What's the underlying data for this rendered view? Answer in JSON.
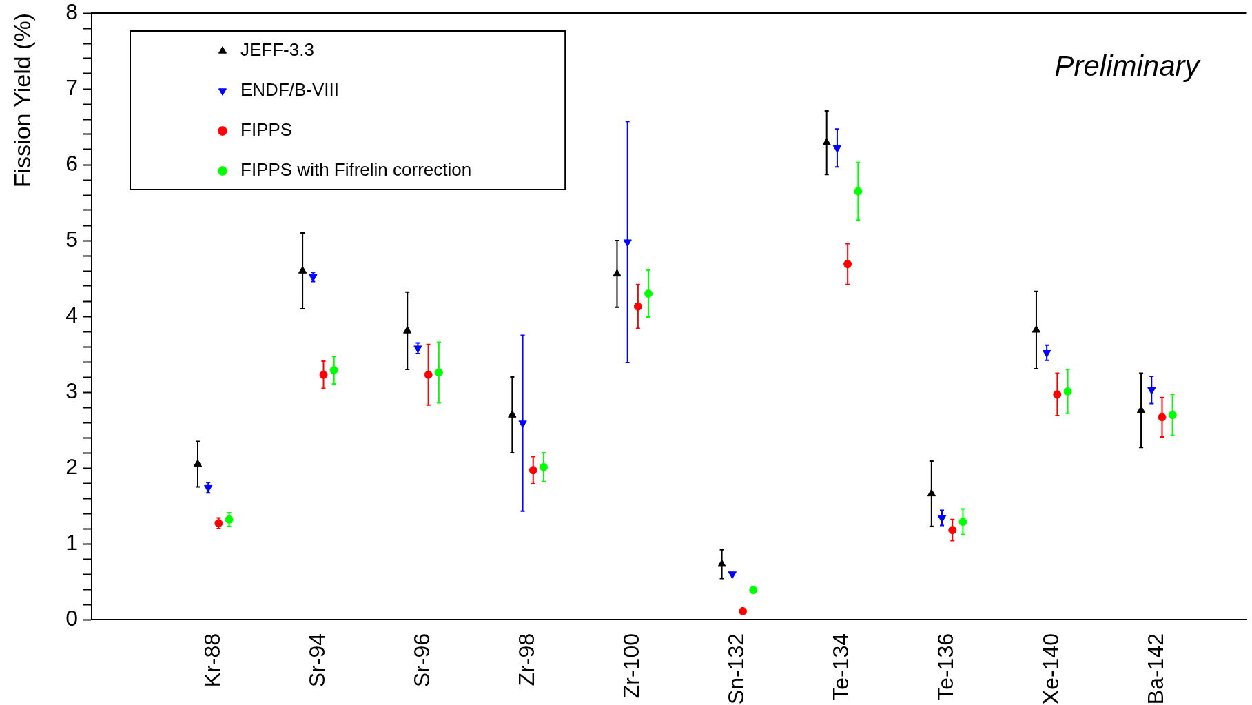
{
  "chart_data": {
    "type": "scatter",
    "ylabel": "Fission Yield (%)",
    "categories": [
      "Kr-88",
      "Sr-94",
      "Sr-96",
      "Zr-98",
      "Zr-100",
      "Sn-132",
      "Te-134",
      "Te-136",
      "Xe-140",
      "Ba-142"
    ],
    "series": [
      {
        "name": "JEFF-3.3",
        "color": "#000000",
        "marker": "triangle",
        "values": [
          2.05,
          4.6,
          3.81,
          2.7,
          4.56,
          0.73,
          6.29,
          1.66,
          3.82,
          2.76
        ],
        "errors": [
          0.3,
          0.5,
          0.51,
          0.5,
          0.44,
          0.19,
          0.42,
          0.43,
          0.51,
          0.49
        ]
      },
      {
        "name": "ENDF/B-VIII",
        "color": "#0000ff",
        "marker": "triangle-down",
        "values": [
          1.74,
          4.52,
          3.58,
          2.59,
          4.98,
          0.6,
          6.22,
          1.34,
          3.52,
          3.03
        ],
        "errors": [
          0.07,
          0.06,
          0.07,
          1.16,
          1.59,
          null,
          0.25,
          0.1,
          0.1,
          0.18
        ]
      },
      {
        "name": "FIPPS",
        "color": "#ff0000",
        "marker": "circle",
        "values": [
          1.27,
          3.23,
          3.23,
          1.97,
          4.13,
          0.11,
          4.69,
          1.18,
          2.97,
          2.67
        ],
        "errors": [
          0.07,
          0.18,
          0.4,
          0.18,
          0.29,
          null,
          0.27,
          0.14,
          0.28,
          0.26
        ]
      },
      {
        "name": "FIPPS with Fifrelin correction",
        "color": "#00ff00",
        "marker": "circle",
        "values": [
          1.32,
          3.29,
          3.26,
          2.01,
          4.3,
          0.39,
          5.65,
          1.29,
          3.01,
          2.7
        ],
        "errors": [
          0.09,
          0.18,
          0.4,
          0.19,
          0.31,
          null,
          0.38,
          0.17,
          0.29,
          0.27
        ]
      }
    ],
    "ylim": [
      0,
      8
    ],
    "yticks": [
      0,
      {
        "value": 0.2,
        "label": null
      },
      {
        "value": 0.4,
        "label": null
      },
      {
        "value": 0.6,
        "label": null
      },
      {
        "value": 0.8,
        "label": null
      },
      1,
      {
        "value": 1.2,
        "label": null
      },
      {
        "value": 1.4,
        "label": null
      },
      {
        "value": 1.6,
        "label": null
      },
      {
        "value": 1.8,
        "label": null
      },
      2,
      {
        "value": 2.2,
        "label": null
      },
      {
        "value": 2.4,
        "label": null
      },
      {
        "value": 2.6,
        "label": null
      },
      {
        "value": 2.8,
        "label": null
      },
      3,
      {
        "value": 3.2,
        "label": null
      },
      {
        "value": 3.4,
        "label": null
      },
      {
        "value": 3.6,
        "label": null
      },
      {
        "value": 3.8,
        "label": null
      },
      4,
      {
        "value": 4.2,
        "label": null
      },
      {
        "value": 4.4,
        "label": null
      },
      {
        "value": 4.6,
        "label": null
      },
      {
        "value": 4.8,
        "label": null
      },
      5,
      {
        "value": 5.2,
        "label": null
      },
      {
        "value": 5.4,
        "label": null
      },
      {
        "value": 5.6,
        "label": null
      },
      {
        "value": 5.8,
        "label": null
      },
      6,
      {
        "value": 6.2,
        "label": null
      },
      {
        "value": 6.4,
        "label": null
      },
      {
        "value": 6.6,
        "label": null
      },
      {
        "value": 6.8,
        "label": null
      },
      7,
      {
        "value": 7.2,
        "label": null
      },
      {
        "value": 7.4,
        "label": null
      },
      {
        "value": 7.6,
        "label": null
      },
      {
        "value": 7.8,
        "label": null
      },
      8
    ],
    "legend": "top left",
    "annotations": [
      "Preliminary"
    ]
  }
}
